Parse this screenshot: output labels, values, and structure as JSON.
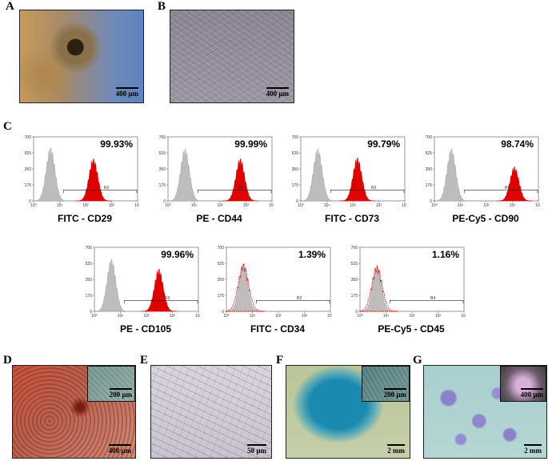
{
  "panels": {
    "a": {
      "letter": "A",
      "scale": "400 µm"
    },
    "b": {
      "letter": "B",
      "scale": "400 µm"
    },
    "c": {
      "letter": "C"
    },
    "d": {
      "letter": "D",
      "scale": "400 µm",
      "inset_scale": "200 µm"
    },
    "e": {
      "letter": "E",
      "scale": "50 µm"
    },
    "f": {
      "letter": "F",
      "scale": "2 mm",
      "inset_scale": "200 µm"
    },
    "g": {
      "letter": "G",
      "scale": "2 mm",
      "inset_scale": "400 µm"
    }
  },
  "histogram_axis": {
    "y_ticks": [
      "0",
      "175",
      "350",
      "525",
      "700"
    ],
    "x_ticks": [
      "10⁰",
      "10¹",
      "10²",
      "10³",
      "10⁴"
    ]
  },
  "chart_data": [
    {
      "type": "histogram",
      "marker": "FITC - CD29",
      "gate": "R2",
      "percent": "99.93%",
      "ylim": [
        0,
        700
      ],
      "xscale": "log",
      "xlim": [
        1,
        10000
      ],
      "control_peak_x": 4.5,
      "control_peak_y": 530,
      "stained_peak_x": 200,
      "stained_peak_y": 420
    },
    {
      "type": "histogram",
      "marker": "PE - CD44",
      "gate": "R3",
      "percent": "99.99%",
      "ylim": [
        0,
        700
      ],
      "xscale": "log",
      "xlim": [
        1,
        10000
      ],
      "control_peak_x": 4.5,
      "control_peak_y": 520,
      "stained_peak_x": 600,
      "stained_peak_y": 420
    },
    {
      "type": "histogram",
      "marker": "FITC - CD73",
      "gate": "R2",
      "percent": "99.79%",
      "ylim": [
        0,
        700
      ],
      "xscale": "log",
      "xlim": [
        1,
        10000
      ],
      "control_peak_x": 4.5,
      "control_peak_y": 520,
      "stained_peak_x": 150,
      "stained_peak_y": 430
    },
    {
      "type": "histogram",
      "marker": "PE-Cy5 - CD90",
      "gate": "R4",
      "percent": "98.74%",
      "ylim": [
        0,
        700
      ],
      "xscale": "log",
      "xlim": [
        1,
        10000
      ],
      "control_peak_x": 4.5,
      "control_peak_y": 520,
      "stained_peak_x": 1200,
      "stained_peak_y": 340
    },
    {
      "type": "histogram",
      "marker": "PE - CD105",
      "gate": "R3",
      "percent": "99.96%",
      "ylim": [
        0,
        700
      ],
      "xscale": "log",
      "xlim": [
        1,
        10000
      ],
      "control_peak_x": 4.5,
      "control_peak_y": 520,
      "stained_peak_x": 300,
      "stained_peak_y": 420
    },
    {
      "type": "histogram",
      "marker": "FITC - CD34",
      "gate": "R2",
      "percent": "1.39%",
      "ylim": [
        0,
        700
      ],
      "xscale": "log",
      "xlim": [
        1,
        10000
      ],
      "control_peak_x": 4.5,
      "control_peak_y": 480,
      "stained_peak_x": 4.5,
      "stained_peak_y": 470
    },
    {
      "type": "histogram",
      "marker": "PE-Cy5 - CD45",
      "gate": "R4",
      "percent": "1.16%",
      "ylim": [
        0,
        700
      ],
      "xscale": "log",
      "xlim": [
        1,
        10000
      ],
      "control_peak_x": 4.5,
      "control_peak_y": 460,
      "stained_peak_x": 4.5,
      "stained_peak_y": 450
    }
  ],
  "colors": {
    "stained": "#e00000",
    "control": "#bdbdbd",
    "control_edge": "#9a9a9a"
  }
}
